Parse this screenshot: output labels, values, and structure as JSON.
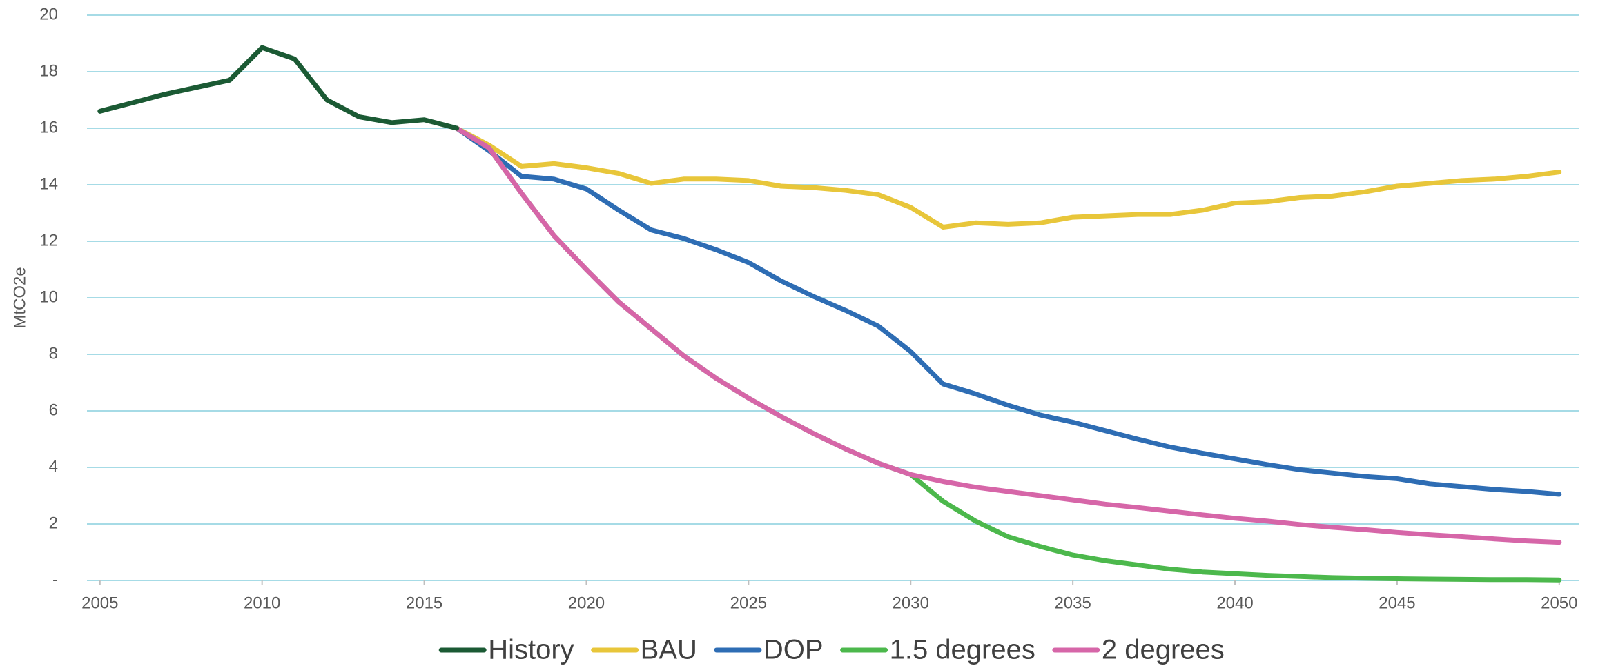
{
  "chart_data": {
    "type": "line",
    "y_label": "MtCO2e",
    "x": [
      2005,
      2006,
      2007,
      2008,
      2009,
      2010,
      2011,
      2012,
      2013,
      2014,
      2015,
      2016,
      2017,
      2018,
      2019,
      2020,
      2021,
      2022,
      2023,
      2024,
      2025,
      2026,
      2027,
      2028,
      2029,
      2030,
      2031,
      2032,
      2033,
      2034,
      2035,
      2036,
      2037,
      2038,
      2039,
      2040,
      2041,
      2042,
      2043,
      2044,
      2045,
      2046,
      2047,
      2048,
      2049,
      2050
    ],
    "xlim": [
      2004.6,
      2050.6
    ],
    "xticks": [
      2005,
      2010,
      2015,
      2020,
      2025,
      2030,
      2035,
      2040,
      2045,
      2050
    ],
    "ylim": [
      0,
      20
    ],
    "yticks": [
      {
        "value": 0,
        "label": "-"
      },
      2,
      4,
      6,
      8,
      10,
      12,
      14,
      16,
      18,
      20
    ],
    "grid": true,
    "legend": "bottom",
    "series": [
      {
        "name": "History",
        "color": "#1b5a34",
        "values": [
          16.6,
          16.9,
          17.2,
          17.45,
          17.7,
          18.85,
          18.45,
          17.0,
          16.4,
          16.2,
          16.3,
          16.0,
          null,
          null,
          null,
          null,
          null,
          null,
          null,
          null,
          null,
          null,
          null,
          null,
          null,
          null,
          null,
          null,
          null,
          null,
          null,
          null,
          null,
          null,
          null,
          null,
          null,
          null,
          null,
          null,
          null,
          null,
          null,
          null,
          null,
          null
        ]
      },
      {
        "name": "BAU",
        "color": "#e8c63a",
        "values": [
          null,
          null,
          null,
          null,
          null,
          null,
          null,
          null,
          null,
          null,
          null,
          16.0,
          15.4,
          14.65,
          14.75,
          14.6,
          14.4,
          14.05,
          14.2,
          14.2,
          14.15,
          13.95,
          13.9,
          13.8,
          13.65,
          13.2,
          12.5,
          12.65,
          12.6,
          12.65,
          12.85,
          12.9,
          12.95,
          12.95,
          13.1,
          13.35,
          13.4,
          13.55,
          13.6,
          13.75,
          13.95,
          14.05,
          14.15,
          14.2,
          14.3,
          14.45
        ]
      },
      {
        "name": "DOP",
        "color": "#2e6db4",
        "values": [
          null,
          null,
          null,
          null,
          null,
          null,
          null,
          null,
          null,
          null,
          null,
          16.0,
          15.2,
          14.3,
          14.2,
          13.85,
          13.1,
          12.4,
          12.1,
          11.7,
          11.25,
          10.6,
          10.05,
          9.55,
          9.0,
          8.1,
          6.95,
          6.6,
          6.2,
          5.85,
          5.6,
          5.3,
          5.0,
          4.72,
          4.5,
          4.3,
          4.1,
          3.92,
          3.8,
          3.68,
          3.6,
          3.42,
          3.32,
          3.22,
          3.15,
          3.05
        ]
      },
      {
        "name": "1.5 degrees",
        "color": "#4cb84c",
        "values": [
          null,
          null,
          null,
          null,
          null,
          null,
          null,
          null,
          null,
          null,
          null,
          16.0,
          15.3,
          13.7,
          12.2,
          11.0,
          9.85,
          8.9,
          7.95,
          7.15,
          6.45,
          5.8,
          5.2,
          4.65,
          4.15,
          3.75,
          2.8,
          2.1,
          1.55,
          1.2,
          0.9,
          0.7,
          0.55,
          0.4,
          0.3,
          0.24,
          0.18,
          0.14,
          0.1,
          0.08,
          0.06,
          0.05,
          0.04,
          0.03,
          0.03,
          0.02
        ]
      },
      {
        "name": "2 degrees",
        "color": "#d666a8",
        "values": [
          null,
          null,
          null,
          null,
          null,
          null,
          null,
          null,
          null,
          null,
          null,
          16.0,
          15.3,
          13.7,
          12.2,
          11.0,
          9.85,
          8.9,
          7.95,
          7.15,
          6.45,
          5.8,
          5.2,
          4.65,
          4.15,
          3.75,
          3.5,
          3.3,
          3.15,
          3.0,
          2.85,
          2.7,
          2.58,
          2.45,
          2.32,
          2.2,
          2.1,
          1.98,
          1.88,
          1.8,
          1.7,
          1.62,
          1.55,
          1.47,
          1.4,
          1.35
        ]
      }
    ]
  }
}
